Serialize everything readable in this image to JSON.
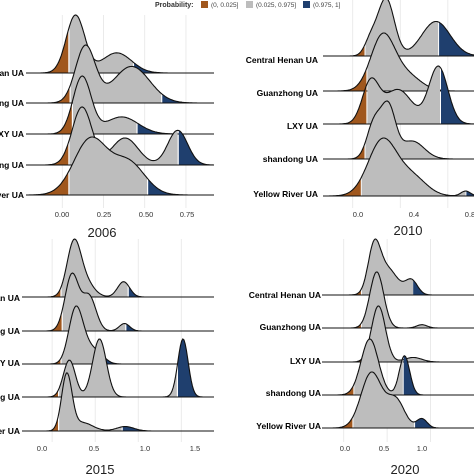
{
  "legend": {
    "title": "Probability:",
    "items": [
      {
        "label": "(0, 0.025]",
        "color": "#A0571D"
      },
      {
        "label": "(0.025, 0.975]",
        "color": "#BDBDBD"
      },
      {
        "label": "(0.975, 1]",
        "color": "#1F3F6E"
      }
    ]
  },
  "chart_data": [
    {
      "type": "ridgeline",
      "title": "2006",
      "tick_labels": [
        "0.00",
        "0.25",
        "0.50",
        "0.75"
      ],
      "xlim": [
        -0.22,
        0.92
      ],
      "xticks": [
        0,
        0.25,
        0.5,
        0.75
      ],
      "row_labels": [
        "nan UA",
        "ong UA",
        "XY UA",
        "ong UA",
        "River UA"
      ],
      "series": [
        {
          "lower": 0.04,
          "upper": 0.43,
          "peaks": [
            [
              0.08,
              0.056,
              1.0
            ],
            [
              0.33,
              0.09,
              0.35
            ]
          ]
        },
        {
          "lower": 0.05,
          "upper": 0.6,
          "peaks": [
            [
              0.14,
              0.06,
              0.85
            ],
            [
              0.42,
              0.11,
              0.55
            ]
          ]
        },
        {
          "lower": 0.06,
          "upper": 0.45,
          "peaks": [
            [
              0.12,
              0.055,
              1.0
            ],
            [
              0.36,
              0.1,
              0.3
            ]
          ]
        },
        {
          "lower": 0.04,
          "upper": 0.7,
          "peaks": [
            [
              0.12,
              0.06,
              0.75
            ],
            [
              0.38,
              0.08,
              0.35
            ],
            [
              0.7,
              0.06,
              0.45
            ]
          ]
        },
        {
          "lower": 0.04,
          "upper": 0.52,
          "peaks": [
            [
              0.17,
              0.1,
              0.6
            ],
            [
              0.4,
              0.1,
              0.35
            ]
          ]
        }
      ]
    },
    {
      "type": "ridgeline",
      "title": "2010",
      "tick_labels": [
        "0.0",
        "0.4",
        "0.8"
      ],
      "xlim": [
        -0.25,
        1.02
      ],
      "xticks": [
        0,
        0.4,
        0.8
      ],
      "row_labels": [
        "Central Henan UA",
        "Guanzhong UA",
        "LXY UA",
        "shandong UA",
        "Yellow River UA"
      ],
      "series": [
        {
          "lower": 0.1,
          "upper": 0.72,
          "peaks": [
            [
              0.15,
              0.05,
              0.25
            ],
            [
              0.28,
              0.07,
              1.0
            ],
            [
              0.7,
              0.12,
              0.6
            ]
          ]
        },
        {
          "lower": 0.12,
          "upper": 1.05,
          "peaks": [
            [
              0.25,
              0.1,
              0.85
            ],
            [
              0.45,
              0.12,
              0.25
            ]
          ]
        },
        {
          "lower": 0.12,
          "upper": 0.74,
          "peaks": [
            [
              0.15,
              0.07,
              0.35
            ],
            [
              0.38,
              0.12,
              0.3
            ],
            [
              0.72,
              0.08,
              0.5
            ]
          ]
        },
        {
          "lower": 0.1,
          "upper": 1.05,
          "peaks": [
            [
              0.18,
              0.06,
              0.5
            ],
            [
              0.3,
              0.06,
              0.7
            ],
            [
              0.5,
              0.1,
              0.25
            ]
          ]
        },
        {
          "lower": 0.07,
          "upper": 0.95,
          "peaks": [
            [
              0.25,
              0.12,
              0.9
            ],
            [
              0.5,
              0.12,
              0.3
            ],
            [
              0.95,
              0.04,
              0.08
            ]
          ]
        }
      ]
    },
    {
      "type": "ridgeline",
      "title": "2015",
      "tick_labels": [
        "0.0",
        "0.5",
        "1.0",
        "1.5"
      ],
      "xlim": [
        -0.35,
        1.88
      ],
      "xticks": [
        0,
        0.5,
        1.0,
        1.5
      ],
      "row_labels": [
        "nan UA",
        "ong UA",
        "XY UA",
        "ong UA",
        "iver UA"
      ],
      "series": [
        {
          "lower": 0.1,
          "upper": 0.88,
          "peaks": [
            [
              0.25,
              0.08,
              1.0
            ],
            [
              0.38,
              0.1,
              0.3
            ],
            [
              0.83,
              0.07,
              0.3
            ]
          ]
        },
        {
          "lower": 0.12,
          "upper": 0.85,
          "peaks": [
            [
              0.23,
              0.08,
              0.9
            ],
            [
              0.43,
              0.08,
              0.55
            ],
            [
              0.84,
              0.06,
              0.12
            ]
          ]
        },
        {
          "lower": 0.1,
          "upper": 0.58,
          "peaks": [
            [
              0.27,
              0.08,
              0.8
            ],
            [
              0.4,
              0.1,
              0.25
            ],
            [
              0.55,
              0.08,
              0.1
            ]
          ]
        },
        {
          "lower": 0.08,
          "upper": 1.45,
          "peaks": [
            [
              0.2,
              0.07,
              0.35
            ],
            [
              0.55,
              0.08,
              0.55
            ],
            [
              1.52,
              0.06,
              0.55
            ]
          ]
        },
        {
          "lower": 0.07,
          "upper": 0.82,
          "peaks": [
            [
              0.17,
              0.06,
              1.0
            ],
            [
              0.35,
              0.12,
              0.15
            ],
            [
              0.85,
              0.1,
              0.08
            ]
          ]
        }
      ]
    },
    {
      "type": "ridgeline",
      "title": "2020",
      "tick_labels": [
        "0.0",
        "0.5",
        "1.0"
      ],
      "xlim": [
        -0.25,
        1.5
      ],
      "xticks": [
        0,
        0.5,
        1.0
      ],
      "row_labels": [
        "Central Henan UA",
        "Guanzhong UA",
        "LXY UA",
        "shandong UA",
        "Yellow River UA"
      ],
      "series": [
        {
          "lower": 0.2,
          "upper": 0.8,
          "peaks": [
            [
              0.35,
              0.07,
              0.9
            ],
            [
              0.5,
              0.12,
              0.55
            ],
            [
              0.78,
              0.07,
              0.3
            ]
          ]
        },
        {
          "lower": 0.2,
          "upper": 0.98,
          "peaks": [
            [
              0.38,
              0.08,
              0.85
            ],
            [
              0.9,
              0.06,
              0.05
            ]
          ]
        },
        {
          "lower": 0.2,
          "upper": 0.95,
          "peaks": [
            [
              0.4,
              0.08,
              1.0
            ],
            [
              0.8,
              0.1,
              0.08
            ]
          ]
        },
        {
          "lower": 0.12,
          "upper": 0.68,
          "peaks": [
            [
              0.3,
              0.1,
              0.5
            ],
            [
              0.7,
              0.06,
              0.35
            ]
          ]
        },
        {
          "lower": 0.1,
          "upper": 0.82,
          "peaks": [
            [
              0.32,
              0.12,
              0.6
            ],
            [
              0.6,
              0.1,
              0.3
            ],
            [
              0.9,
              0.06,
              0.1
            ]
          ]
        }
      ]
    }
  ]
}
